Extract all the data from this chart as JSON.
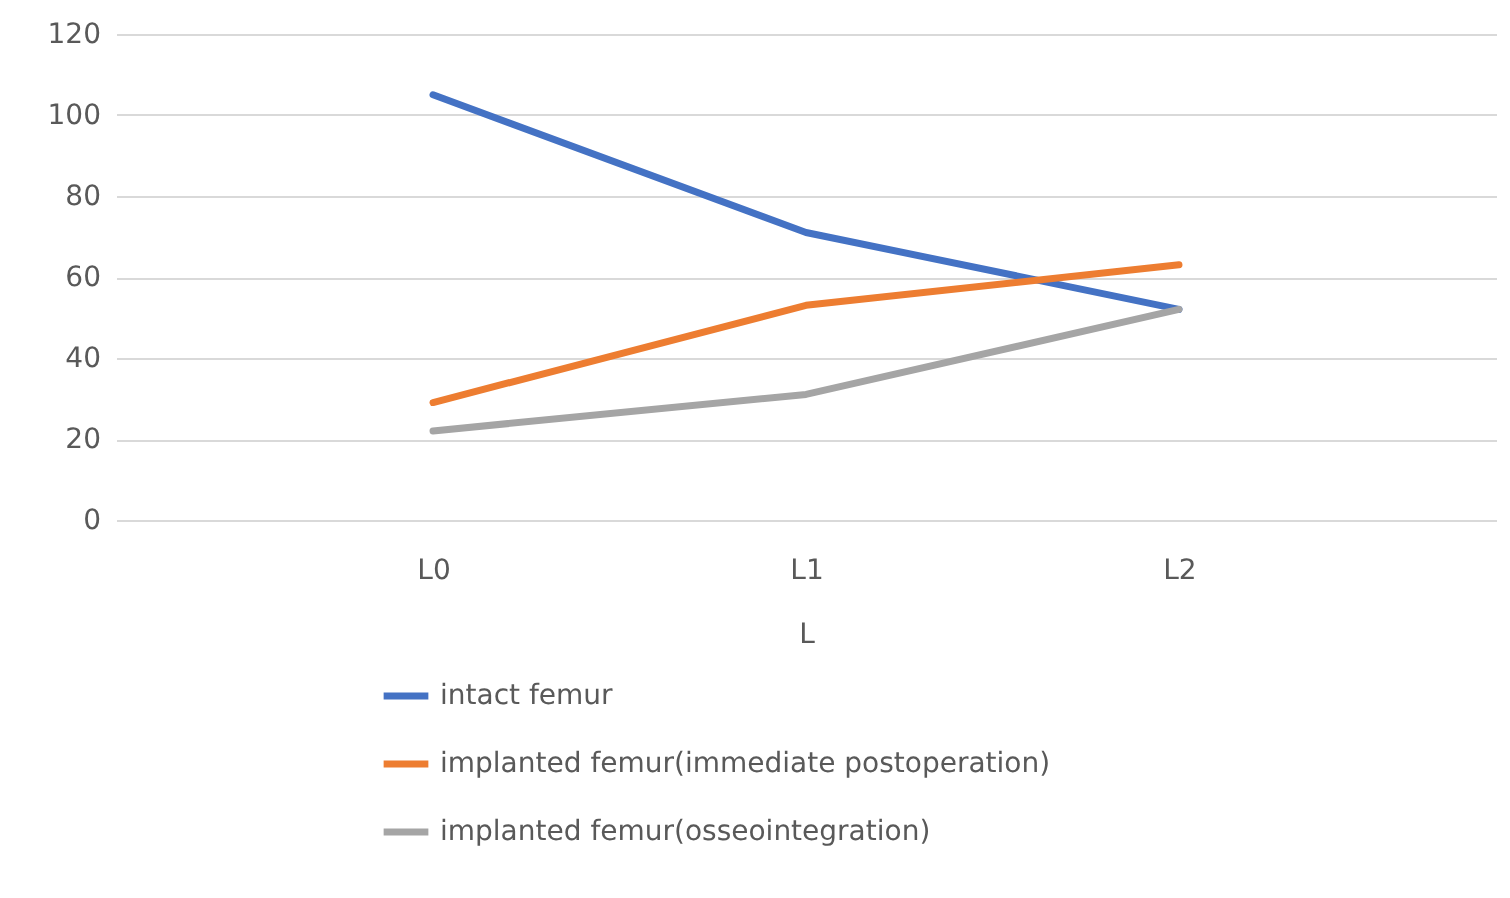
{
  "chart_data": {
    "type": "line",
    "xlabel": "L",
    "categories": [
      "L0",
      "L1",
      "L2"
    ],
    "series": [
      {
        "name": "intact femur",
        "color": "#4472c4",
        "values": [
          105,
          71,
          52
        ]
      },
      {
        "name": "implanted femur(immediate postoperation)",
        "color": "#ed7d31",
        "values": [
          29,
          53,
          63
        ]
      },
      {
        "name": "implanted femur(osseointegration)",
        "color": "#a5a5a5",
        "values": [
          22,
          31,
          52
        ]
      }
    ],
    "ylim": [
      0,
      120
    ],
    "yticks": [
      0,
      20,
      40,
      60,
      80,
      100,
      120
    ],
    "grid": "y",
    "legend": "bottom",
    "marker": "none",
    "line_style": "solid"
  }
}
